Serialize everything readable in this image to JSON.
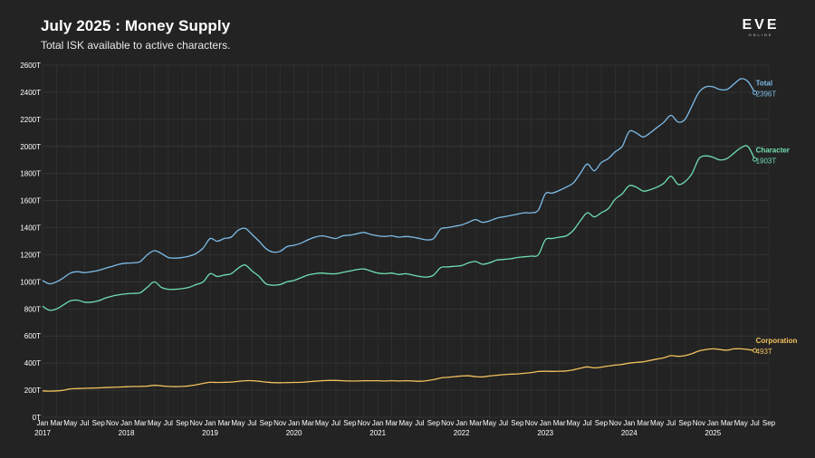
{
  "header": {
    "title": "July 2025 : Money Supply",
    "subtitle": "Total ISK available to active characters.",
    "logo_main": "EVE",
    "logo_sub": "ONLINE"
  },
  "chart_data": {
    "type": "line",
    "title": "July 2025 : Money Supply",
    "subtitle": "Total ISK available to active characters.",
    "xlabel": "",
    "ylabel": "",
    "ylim": [
      0,
      2600
    ],
    "y_ticks": [
      0,
      200,
      400,
      600,
      800,
      1000,
      1200,
      1400,
      1600,
      1800,
      2000,
      2200,
      2400,
      2600
    ],
    "y_tick_labels": [
      "0T",
      "200T",
      "400T",
      "600T",
      "800T",
      "1000T",
      "1200T",
      "1400T",
      "1600T",
      "1800T",
      "2000T",
      "2200T",
      "2400T",
      "2600T"
    ],
    "x_tick_labels": [
      "Jan",
      "Mar",
      "May",
      "Jul",
      "Sep",
      "Nov"
    ],
    "year_labels": [
      "2017",
      "2018",
      "2019",
      "2020",
      "2021",
      "2022",
      "2023",
      "2024",
      "2025"
    ],
    "grid": true,
    "x": [
      "2017-01",
      "2017-02",
      "2017-03",
      "2017-04",
      "2017-05",
      "2017-06",
      "2017-07",
      "2017-08",
      "2017-09",
      "2017-10",
      "2017-11",
      "2017-12",
      "2018-01",
      "2018-02",
      "2018-03",
      "2018-04",
      "2018-05",
      "2018-06",
      "2018-07",
      "2018-08",
      "2018-09",
      "2018-10",
      "2018-11",
      "2018-12",
      "2019-01",
      "2019-02",
      "2019-03",
      "2019-04",
      "2019-05",
      "2019-06",
      "2019-07",
      "2019-08",
      "2019-09",
      "2019-10",
      "2019-11",
      "2019-12",
      "2020-01",
      "2020-02",
      "2020-03",
      "2020-04",
      "2020-05",
      "2020-06",
      "2020-07",
      "2020-08",
      "2020-09",
      "2020-10",
      "2020-11",
      "2020-12",
      "2021-01",
      "2021-02",
      "2021-03",
      "2021-04",
      "2021-05",
      "2021-06",
      "2021-07",
      "2021-08",
      "2021-09",
      "2021-10",
      "2021-11",
      "2021-12",
      "2022-01",
      "2022-02",
      "2022-03",
      "2022-04",
      "2022-05",
      "2022-06",
      "2022-07",
      "2022-08",
      "2022-09",
      "2022-10",
      "2022-11",
      "2022-12",
      "2023-01",
      "2023-02",
      "2023-03",
      "2023-04",
      "2023-05",
      "2023-06",
      "2023-07",
      "2023-08",
      "2023-09",
      "2023-10",
      "2023-11",
      "2023-12",
      "2024-01",
      "2024-02",
      "2024-03",
      "2024-04",
      "2024-05",
      "2024-06",
      "2024-07",
      "2024-08",
      "2024-09",
      "2024-10",
      "2024-11",
      "2024-12",
      "2025-01",
      "2025-02",
      "2025-03",
      "2025-04",
      "2025-05",
      "2025-06",
      "2025-07"
    ],
    "series": [
      {
        "name": "Total",
        "color": "#7dbce8",
        "end_label": "2396T",
        "values": [
          1010,
          985,
          1000,
          1030,
          1065,
          1075,
          1068,
          1075,
          1085,
          1100,
          1115,
          1130,
          1138,
          1140,
          1150,
          1200,
          1230,
          1210,
          1180,
          1175,
          1180,
          1190,
          1210,
          1250,
          1320,
          1300,
          1320,
          1330,
          1380,
          1395,
          1350,
          1300,
          1245,
          1220,
          1225,
          1260,
          1270,
          1285,
          1310,
          1330,
          1340,
          1330,
          1320,
          1340,
          1345,
          1355,
          1365,
          1350,
          1340,
          1335,
          1340,
          1330,
          1335,
          1330,
          1320,
          1310,
          1320,
          1390,
          1400,
          1410,
          1420,
          1440,
          1460,
          1440,
          1450,
          1470,
          1480,
          1490,
          1500,
          1510,
          1510,
          1530,
          1650,
          1655,
          1675,
          1700,
          1730,
          1800,
          1870,
          1820,
          1880,
          1910,
          1960,
          2000,
          2110,
          2100,
          2070,
          2100,
          2140,
          2180,
          2230,
          2180,
          2200,
          2300,
          2400,
          2440,
          2440,
          2420,
          2420,
          2460,
          2500,
          2480,
          2396
        ]
      },
      {
        "name": "Character",
        "color": "#6fdfb1",
        "end_label": "1903T",
        "values": [
          820,
          790,
          800,
          830,
          860,
          865,
          850,
          850,
          860,
          880,
          895,
          905,
          912,
          915,
          920,
          960,
          1000,
          960,
          945,
          945,
          950,
          960,
          980,
          1000,
          1060,
          1040,
          1050,
          1060,
          1100,
          1125,
          1080,
          1040,
          985,
          975,
          980,
          1000,
          1010,
          1030,
          1050,
          1060,
          1065,
          1060,
          1060,
          1070,
          1080,
          1090,
          1095,
          1080,
          1065,
          1060,
          1065,
          1055,
          1060,
          1050,
          1040,
          1035,
          1050,
          1105,
          1110,
          1115,
          1120,
          1140,
          1150,
          1130,
          1140,
          1160,
          1165,
          1170,
          1180,
          1185,
          1190,
          1200,
          1310,
          1320,
          1330,
          1340,
          1380,
          1450,
          1510,
          1480,
          1510,
          1540,
          1610,
          1650,
          1710,
          1700,
          1670,
          1680,
          1700,
          1730,
          1780,
          1720,
          1740,
          1800,
          1910,
          1930,
          1920,
          1900,
          1910,
          1950,
          1990,
          2000,
          1903
        ]
      },
      {
        "name": "Corporation",
        "color": "#f3c15e",
        "end_label": "493T",
        "values": [
          195,
          193,
          195,
          200,
          210,
          212,
          214,
          215,
          217,
          219,
          221,
          223,
          225,
          227,
          228,
          230,
          236,
          232,
          228,
          226,
          228,
          232,
          240,
          250,
          258,
          257,
          258,
          260,
          265,
          270,
          270,
          266,
          260,
          256,
          255,
          256,
          257,
          258,
          262,
          266,
          270,
          272,
          272,
          270,
          268,
          268,
          270,
          270,
          270,
          268,
          270,
          268,
          270,
          268,
          266,
          270,
          278,
          290,
          295,
          300,
          305,
          306,
          300,
          298,
          305,
          310,
          315,
          318,
          320,
          325,
          330,
          338,
          340,
          339,
          340,
          342,
          350,
          362,
          372,
          365,
          370,
          378,
          385,
          390,
          400,
          405,
          410,
          420,
          430,
          440,
          455,
          450,
          455,
          470,
          490,
          500,
          505,
          500,
          495,
          505,
          505,
          500,
          493
        ]
      }
    ]
  }
}
